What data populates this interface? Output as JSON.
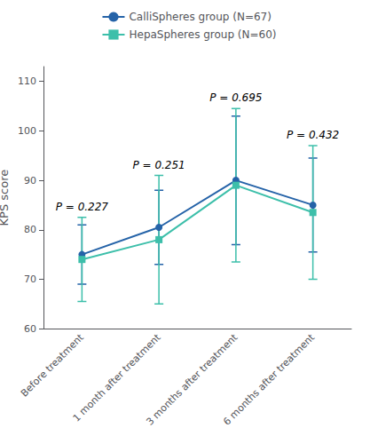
{
  "chart_data": {
    "type": "line",
    "categories": [
      "Before treatment",
      "1 month after treatment",
      "3 months after treatment",
      "6 months after treatment"
    ],
    "series": [
      {
        "name": "CalliSpheres group (N=67)",
        "color": "#2563a8",
        "marker": "circle",
        "values": [
          75.0,
          80.5,
          90.0,
          85.0
        ],
        "errors": [
          6.0,
          7.5,
          13.0,
          9.5
        ]
      },
      {
        "name": "HepaSpheres group (N=60)",
        "color": "#3dbfaa",
        "marker": "square",
        "values": [
          74.0,
          78.0,
          89.0,
          83.5
        ],
        "errors": [
          8.5,
          13.0,
          15.5,
          13.5
        ]
      }
    ],
    "annotations": [
      "P = 0.227",
      "P = 0.251",
      "P = 0.695",
      "P = 0.432"
    ],
    "ylabel": "KPS score",
    "ylim": [
      60,
      113
    ],
    "yticks": [
      60,
      70,
      80,
      90,
      100,
      110
    ],
    "grid": false,
    "legend": "top"
  }
}
